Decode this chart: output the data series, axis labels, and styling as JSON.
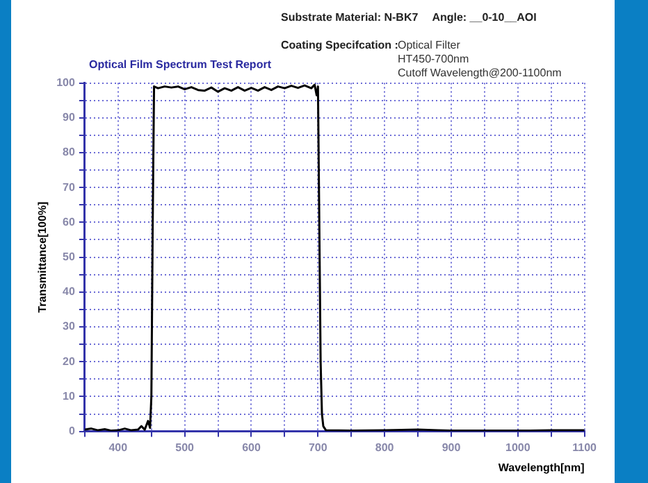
{
  "chart_data": {
    "type": "line",
    "title": "Optical Film Spectrum Test Report",
    "xlabel": "Wavelength[nm]",
    "ylabel": "Transmittance[100%]",
    "annotations": [
      "Substrate Material: N-BK7",
      "Angle: __0-10__AOI",
      "Coating Specifcation :",
      "Optical Filter",
      "HT450-700nm",
      "Cutoff Wavelength@200-1100nm"
    ],
    "x": [
      350,
      360,
      370,
      380,
      390,
      400,
      410,
      420,
      430,
      435,
      440,
      445,
      448,
      450,
      452,
      454,
      460,
      470,
      480,
      490,
      500,
      510,
      520,
      530,
      540,
      550,
      560,
      570,
      580,
      590,
      600,
      610,
      620,
      630,
      640,
      650,
      660,
      670,
      680,
      690,
      695,
      698,
      700,
      702,
      704,
      706,
      708,
      712,
      750,
      800,
      850,
      880,
      900,
      950,
      1000,
      1050,
      1100
    ],
    "series": [
      {
        "color": "#000000",
        "values": [
          0.5,
          0.8,
          0.3,
          0.6,
          0.2,
          0.3,
          0.8,
          0.3,
          0.5,
          1.5,
          0.5,
          3,
          1,
          10,
          60,
          99,
          98.5,
          99,
          98.7,
          99,
          98.2,
          98.8,
          98,
          97.8,
          98.7,
          97.5,
          98.5,
          97.8,
          98.8,
          97.8,
          98.6,
          97.8,
          98.8,
          98,
          99,
          98.5,
          99.2,
          98.6,
          99.3,
          98.5,
          99.5,
          96.5,
          99,
          60,
          20,
          5,
          1.5,
          0.3,
          0.2,
          0.3,
          0.5,
          0.3,
          0.2,
          0.2,
          0.2,
          0.3,
          0.3
        ]
      }
    ],
    "xlim": [
      350,
      1100
    ],
    "xticks": [
      {
        "value": 350,
        "label": null
      },
      400,
      {
        "value": 450,
        "label": null
      },
      500,
      {
        "value": 550,
        "label": null
      },
      600,
      {
        "value": 650,
        "label": null
      },
      700,
      {
        "value": 750,
        "label": null
      },
      800,
      {
        "value": 850,
        "label": null
      },
      900,
      {
        "value": 950,
        "label": null
      },
      1000,
      {
        "value": 1050,
        "label": null
      },
      1100
    ],
    "ylim": [
      0,
      100
    ],
    "yticks": [
      0,
      {
        "value": 5,
        "label": null
      },
      10,
      {
        "value": 15,
        "label": null
      },
      20,
      {
        "value": 25,
        "label": null
      },
      30,
      {
        "value": 35,
        "label": null
      },
      40,
      {
        "value": 45,
        "label": null
      },
      50,
      {
        "value": 55,
        "label": null
      },
      60,
      {
        "value": 65,
        "label": null
      },
      70,
      {
        "value": 75,
        "label": null
      },
      80,
      {
        "value": 85,
        "label": null
      },
      90,
      {
        "value": 95,
        "label": null
      },
      100
    ],
    "grid": true,
    "legend": false,
    "marker": "none",
    "line_style": "solid"
  }
}
